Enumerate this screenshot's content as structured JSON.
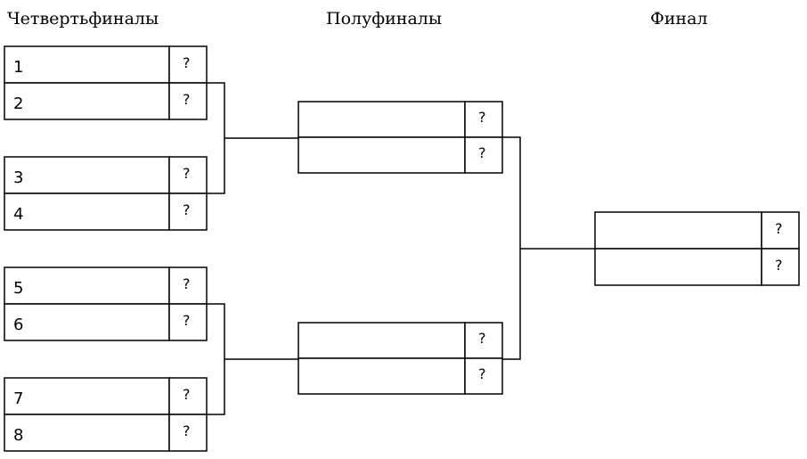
{
  "rounds": [
    {
      "title": "Четвертьфиналы",
      "matches": [
        {
          "slots": [
            {
              "label": "1",
              "score": "?"
            },
            {
              "label": "2",
              "score": "?"
            }
          ]
        },
        {
          "slots": [
            {
              "label": "3",
              "score": "?"
            },
            {
              "label": "4",
              "score": "?"
            }
          ]
        },
        {
          "slots": [
            {
              "label": "5",
              "score": "?"
            },
            {
              "label": "6",
              "score": "?"
            }
          ]
        },
        {
          "slots": [
            {
              "label": "7",
              "score": "?"
            },
            {
              "label": "8",
              "score": "?"
            }
          ]
        }
      ]
    },
    {
      "title": "Полуфиналы",
      "matches": [
        {
          "slots": [
            {
              "label": "",
              "score": "?"
            },
            {
              "label": "",
              "score": "?"
            }
          ]
        },
        {
          "slots": [
            {
              "label": "",
              "score": "?"
            },
            {
              "label": "",
              "score": "?"
            }
          ]
        }
      ]
    },
    {
      "title": "Финал",
      "matches": [
        {
          "slots": [
            {
              "label": "",
              "score": "?"
            },
            {
              "label": "",
              "score": "?"
            }
          ]
        }
      ]
    }
  ]
}
